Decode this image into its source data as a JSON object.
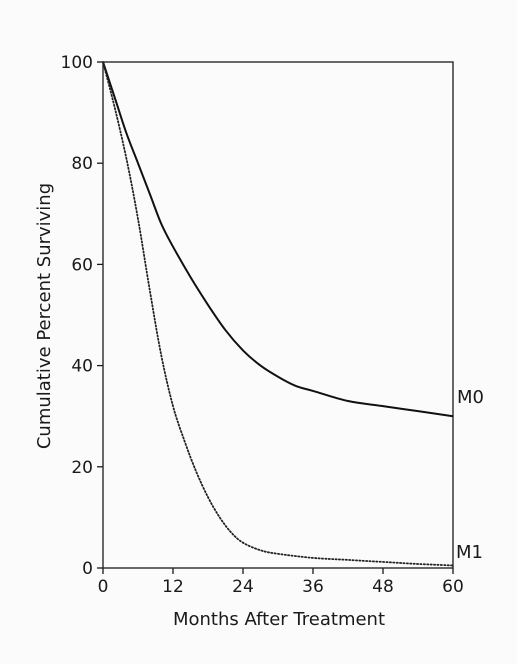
{
  "chart_data": {
    "type": "line",
    "title": "",
    "xlabel": "Months After Treatment",
    "ylabel": "Cumulative Percent Surviving",
    "xlim": [
      0,
      60
    ],
    "ylim": [
      0,
      100
    ],
    "xticks": [
      0,
      12,
      24,
      36,
      48,
      60
    ],
    "yticks": [
      0,
      20,
      40,
      60,
      80,
      100
    ],
    "grid": false,
    "series": [
      {
        "name": "M0",
        "style": "solid",
        "color": "#111111",
        "x": [
          0,
          2,
          4,
          6,
          8,
          10,
          12,
          15,
          18,
          21,
          24,
          27,
          30,
          33,
          36,
          42,
          48,
          54,
          60
        ],
        "y": [
          100,
          93,
          86,
          80,
          74,
          68,
          63.5,
          57.5,
          52,
          47,
          43,
          40,
          37.8,
          36,
          35,
          33,
          32,
          31,
          30
        ]
      },
      {
        "name": "M1",
        "style": "dotted",
        "color": "#222222",
        "x": [
          0,
          2,
          4,
          6,
          8,
          10,
          12,
          14,
          16,
          18,
          20,
          22,
          24,
          27,
          30,
          36,
          42,
          48,
          54,
          60
        ],
        "y": [
          100,
          91,
          81,
          69,
          55,
          42,
          32,
          25,
          19,
          14,
          10,
          7,
          5,
          3.5,
          2.8,
          2,
          1.6,
          1.2,
          0.8,
          0.5
        ]
      }
    ]
  }
}
